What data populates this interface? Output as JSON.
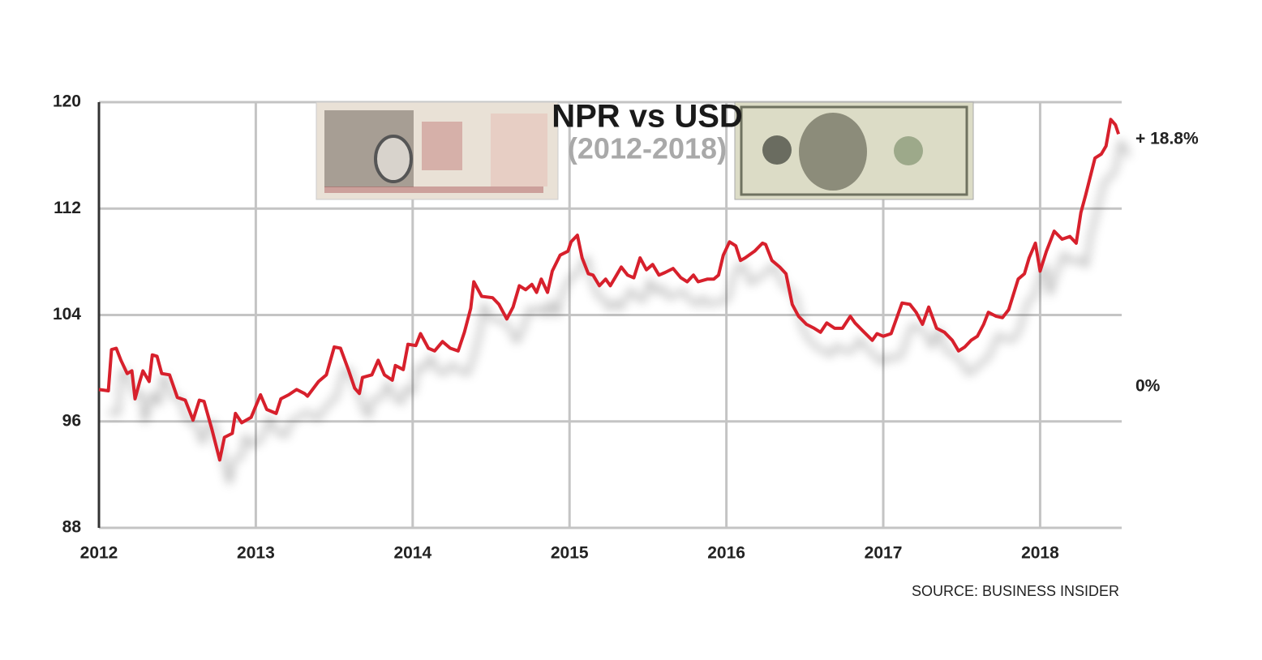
{
  "chart_data": {
    "type": "line",
    "title": "NPR vs USD",
    "subtitle": "(2012-2018)",
    "source": "SOURCE: BUSINESS INSIDER",
    "annotations": [
      "+ 18.8%",
      "0%"
    ],
    "xlim": [
      2012,
      2018.52
    ],
    "xticks": [
      2012,
      2013,
      2014,
      2015,
      2016,
      2017,
      2018
    ],
    "ylim": [
      88,
      120
    ],
    "yticks": [
      88,
      96,
      104,
      112,
      120
    ],
    "grid": true,
    "series": [
      {
        "color": "#d7202c",
        "x": [
          2012.0,
          2012.06,
          2012.08,
          2012.11,
          2012.14,
          2012.18,
          2012.21,
          2012.23,
          2012.26,
          2012.28,
          2012.32,
          2012.34,
          2012.37,
          2012.4,
          2012.45,
          2012.5,
          2012.55,
          2012.6,
          2012.64,
          2012.67,
          2012.72,
          2012.77,
          2012.8,
          2012.85,
          2012.87,
          2012.91,
          2012.97,
          2013.03,
          2013.07,
          2013.13,
          2013.16,
          2013.21,
          2013.26,
          2013.31,
          2013.33,
          2013.4,
          2013.45,
          2013.5,
          2013.54,
          2013.59,
          2013.63,
          2013.66,
          2013.68,
          2013.74,
          2013.78,
          2013.82,
          2013.87,
          2013.89,
          2013.94,
          2013.97,
          2014.02,
          2014.05,
          2014.1,
          2014.14,
          2014.19,
          2014.24,
          2014.29,
          2014.33,
          2014.37,
          2014.39,
          2014.44,
          2014.51,
          2014.55,
          2014.6,
          2014.64,
          2014.68,
          2014.72,
          2014.76,
          2014.79,
          2014.82,
          2014.86,
          2014.89,
          2014.94,
          2014.99,
          2015.01,
          2015.05,
          2015.08,
          2015.12,
          2015.15,
          2015.19,
          2015.23,
          2015.26,
          2015.3,
          2015.33,
          2015.37,
          2015.41,
          2015.45,
          2015.49,
          2015.53,
          2015.57,
          2015.61,
          2015.66,
          2015.71,
          2015.75,
          2015.79,
          2015.82,
          2015.88,
          2015.92,
          2015.95,
          2015.98,
          2016.02,
          2016.06,
          2016.09,
          2016.12,
          2016.18,
          2016.23,
          2016.25,
          2016.29,
          2016.34,
          2016.38,
          2016.42,
          2016.46,
          2016.51,
          2016.56,
          2016.6,
          2016.64,
          2016.69,
          2016.74,
          2016.79,
          2016.82,
          2016.87,
          2016.93,
          2016.96,
          2017.0,
          2017.05,
          2017.12,
          2017.17,
          2017.21,
          2017.25,
          2017.29,
          2017.34,
          2017.39,
          2017.44,
          2017.48,
          2017.52,
          2017.56,
          2017.6,
          2017.64,
          2017.67,
          2017.72,
          2017.76,
          2017.8,
          2017.86,
          2017.9,
          2017.93,
          2017.97,
          2018.0,
          2018.04,
          2018.09,
          2018.14,
          2018.19,
          2018.23,
          2018.26,
          2018.29,
          2018.35,
          2018.39,
          2018.42,
          2018.45,
          2018.48,
          2018.5
        ],
        "values": [
          98.4,
          98.3,
          101.4,
          101.5,
          100.6,
          99.6,
          99.8,
          97.7,
          99.0,
          99.8,
          99.0,
          101.0,
          100.9,
          99.6,
          99.5,
          97.8,
          97.6,
          96.1,
          97.6,
          97.5,
          95.4,
          93.1,
          94.8,
          95.1,
          96.6,
          95.9,
          96.3,
          98.0,
          96.9,
          96.6,
          97.7,
          98.0,
          98.4,
          98.1,
          97.9,
          99.0,
          99.5,
          101.6,
          101.5,
          99.9,
          98.5,
          98.1,
          99.3,
          99.5,
          100.6,
          99.5,
          99.1,
          100.2,
          99.9,
          101.8,
          101.7,
          102.6,
          101.5,
          101.3,
          102.0,
          101.5,
          101.3,
          102.7,
          104.5,
          106.5,
          105.4,
          105.3,
          104.8,
          103.7,
          104.6,
          106.2,
          105.9,
          106.3,
          105.7,
          106.7,
          105.7,
          107.3,
          108.5,
          108.8,
          109.5,
          110.0,
          108.3,
          107.1,
          107.0,
          106.2,
          106.7,
          106.2,
          107.0,
          107.6,
          107.0,
          106.8,
          108.3,
          107.4,
          107.8,
          107.0,
          107.2,
          107.5,
          106.8,
          106.5,
          107.0,
          106.5,
          106.7,
          106.7,
          107.0,
          108.5,
          109.5,
          109.2,
          108.1,
          108.3,
          108.8,
          109.4,
          109.3,
          108.1,
          107.6,
          107.1,
          104.8,
          103.9,
          103.3,
          103.0,
          102.7,
          103.4,
          103.0,
          103.0,
          103.9,
          103.4,
          102.8,
          102.1,
          102.6,
          102.4,
          102.6,
          104.9,
          104.8,
          104.2,
          103.3,
          104.6,
          103.0,
          102.7,
          102.1,
          101.3,
          101.6,
          102.1,
          102.4,
          103.3,
          104.2,
          103.9,
          103.8,
          104.4,
          106.7,
          107.1,
          108.3,
          109.4,
          107.3,
          108.8,
          110.3,
          109.7,
          109.9,
          109.4,
          111.7,
          113.0,
          115.8,
          116.1,
          116.7,
          118.7,
          118.3,
          117.6
        ]
      }
    ]
  }
}
